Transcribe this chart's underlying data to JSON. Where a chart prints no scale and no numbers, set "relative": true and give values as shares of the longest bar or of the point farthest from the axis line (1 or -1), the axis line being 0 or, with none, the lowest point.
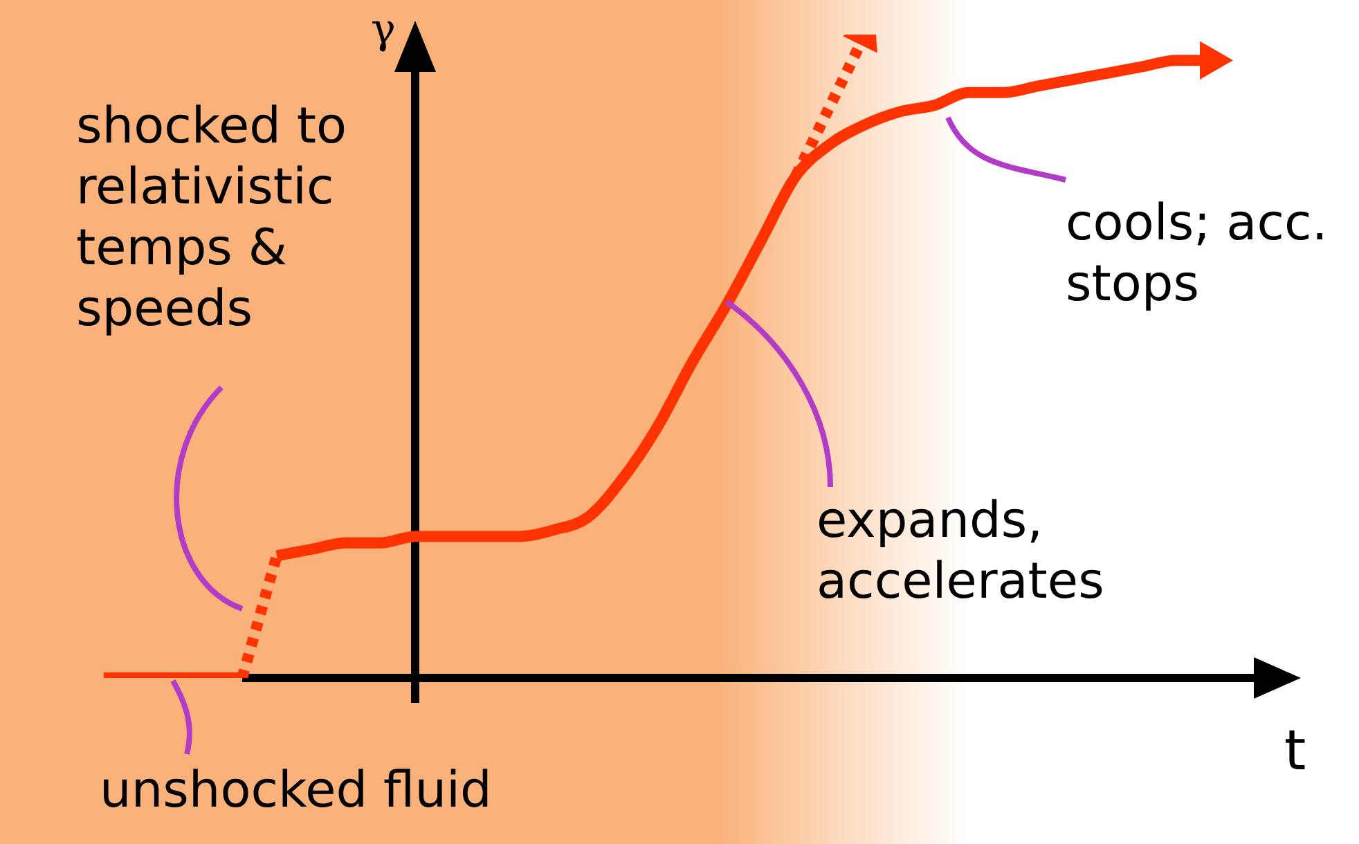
{
  "chart_data": {
    "type": "line",
    "relative": true,
    "marker": "none",
    "xlabel": "t",
    "ylabel": "γ",
    "categories": [
      null,
      null,
      null,
      null,
      null,
      null,
      null,
      null,
      null,
      null,
      null,
      null,
      null,
      null,
      null,
      null,
      null,
      null,
      null,
      null,
      null,
      null,
      null,
      null,
      null,
      null,
      null,
      null,
      null,
      null,
      null,
      null,
      null
    ],
    "series": [
      {
        "color": "#ff3300",
        "line_style": "solid",
        "values": [
          0,
          0,
          0,
          0,
          0,
          null,
          null,
          null,
          null,
          null,
          null,
          null,
          null,
          null,
          null,
          null,
          null,
          null,
          null,
          null,
          null,
          null,
          null,
          null,
          null,
          null,
          null,
          null,
          null,
          null,
          null,
          null,
          null
        ]
      },
      {
        "color": "#ff3300",
        "line_style": "dotted",
        "values": [
          null,
          null,
          null,
          null,
          0,
          0.19,
          null,
          null,
          null,
          null,
          null,
          null,
          null,
          null,
          null,
          null,
          null,
          null,
          null,
          null,
          null,
          null,
          null,
          null,
          null,
          null,
          null,
          null,
          null,
          null,
          null,
          null,
          null
        ]
      },
      {
        "color": "#ff3300",
        "line_style": "solid",
        "values": [
          null,
          null,
          null,
          null,
          null,
          0.19,
          0.2,
          0.21,
          0.21,
          0.22,
          0.22,
          0.22,
          0.22,
          0.23,
          0.25,
          0.31,
          0.39,
          0.49,
          0.58,
          0.68,
          0.78,
          0.83,
          0.86,
          0.88,
          0.89,
          0.91,
          0.91,
          0.92,
          0.93,
          0.94,
          0.95,
          0.96,
          0.96
        ]
      },
      {
        "color": "#ff3300",
        "line_style": "dotted",
        "values": [
          null,
          null,
          null,
          null,
          null,
          null,
          null,
          null,
          null,
          null,
          null,
          null,
          null,
          null,
          null,
          null,
          null,
          null,
          null,
          null,
          0.78,
          0.89,
          1.0,
          null,
          null,
          null,
          null,
          null,
          null,
          null,
          null,
          null,
          null
        ]
      }
    ],
    "annotations": [
      "shocked to relativistic temps & speeds",
      "unshocked fluid",
      "expands, accelerates",
      "cools; acc. stops"
    ]
  }
}
